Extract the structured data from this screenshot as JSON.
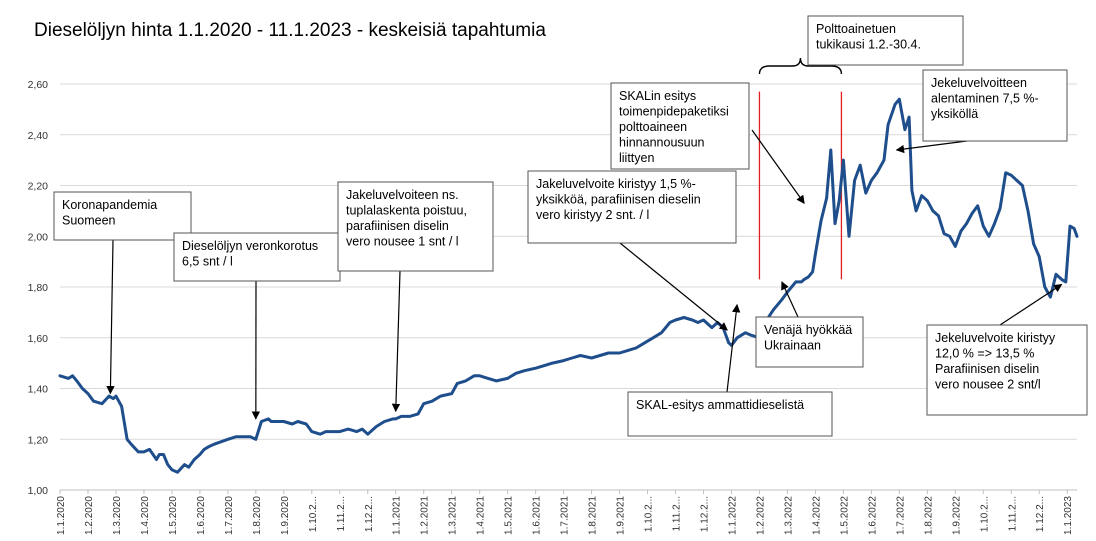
{
  "chart_data": {
    "type": "line",
    "title": "Dieselöljyn hinta 1.1.2020 - 11.1.2023 - keskeisiä tapahtumia",
    "ylim": [
      1.0,
      2.6
    ],
    "ytick_values": [
      1.0,
      1.2,
      1.4,
      1.6,
      1.8,
      2.0,
      2.2,
      2.4,
      2.6
    ],
    "ytick_labels": [
      "1,00",
      "1,20",
      "1,40",
      "1,60",
      "1,80",
      "2,00",
      "2,20",
      "2,40",
      "2,60"
    ],
    "xlim": [
      0,
      36.35
    ],
    "xtick_labels": [
      "1.1.2020",
      "1.2.2020",
      "1.3.2020",
      "1.4.2020",
      "1.5.2020",
      "1.6.2020",
      "1.7.2020",
      "1.8.2020",
      "1.9.2020",
      "1.10.2...",
      "1.11.2...",
      "1.12.2...",
      "1.1.2021",
      "1.2.2021",
      "1.3.2021",
      "1.4.2021",
      "1.5.2021",
      "1.6.2021",
      "1.7.2021",
      "1.8.2021",
      "1.9.2021",
      "1.10.2...",
      "1.11.2...",
      "1.12.2...",
      "1.1.2022",
      "1.2.2022",
      "1.3.2022",
      "1.4.2022",
      "1.5.2022",
      "1.6.2022",
      "1.7.2022",
      "1.8.2022",
      "1.9.2022",
      "1.10.2...",
      "1.11.2...",
      "1.12.2...",
      "1.1.2023"
    ],
    "grid": true,
    "legend": "none",
    "series": [
      {
        "color": "#1f4e8c",
        "x": [
          0,
          0.3,
          0.45,
          0.6,
          0.8,
          1.0,
          1.2,
          1.5,
          1.75,
          1.9,
          2.0,
          2.2,
          2.4,
          2.55,
          2.8,
          3.0,
          3.2,
          3.45,
          3.55,
          3.7,
          3.85,
          4.0,
          4.2,
          4.45,
          4.6,
          4.8,
          5.0,
          5.15,
          5.3,
          5.5,
          5.75,
          6.0,
          6.3,
          6.5,
          6.8,
          7.0,
          7.2,
          7.45,
          7.55,
          7.8,
          8.0,
          8.3,
          8.5,
          8.8,
          9.0,
          9.3,
          9.5,
          9.7,
          10.0,
          10.3,
          10.6,
          10.8,
          11.0,
          11.3,
          11.6,
          11.9,
          12.0,
          12.2,
          12.5,
          12.8,
          13.0,
          13.3,
          13.6,
          14.0,
          14.2,
          14.5,
          14.8,
          15.0,
          15.3,
          15.6,
          16.0,
          16.3,
          16.6,
          17.0,
          17.3,
          17.6,
          18.0,
          18.3,
          18.6,
          19.0,
          19.3,
          19.6,
          20.0,
          20.3,
          20.6,
          20.9,
          21.2,
          21.5,
          21.8,
          22.0,
          22.3,
          22.6,
          22.8,
          23.0,
          23.2,
          23.3,
          23.5,
          23.7,
          23.9,
          24.0,
          24.2,
          24.5,
          24.7,
          25.0,
          25.2,
          25.5,
          25.8,
          26.0,
          26.15,
          26.3,
          26.5,
          26.6,
          26.75,
          26.9,
          27.0,
          27.2,
          27.4,
          27.55,
          27.7,
          27.85,
          28.0,
          28.2,
          28.4,
          28.6,
          28.8,
          29.0,
          29.2,
          29.45,
          29.6,
          29.85,
          30.0,
          30.2,
          30.35,
          30.45,
          30.6,
          30.8,
          31.0,
          31.2,
          31.4,
          31.6,
          31.8,
          32.0,
          32.2,
          32.4,
          32.6,
          32.8,
          33.0,
          33.2,
          33.4,
          33.6,
          33.8,
          34.0,
          34.2,
          34.4,
          34.6,
          34.8,
          35.0,
          35.2,
          35.4,
          35.6,
          35.8,
          35.95,
          36.1,
          36.25,
          36.35
        ],
        "values": [
          1.45,
          1.44,
          1.45,
          1.43,
          1.4,
          1.38,
          1.35,
          1.34,
          1.37,
          1.36,
          1.37,
          1.33,
          1.2,
          1.18,
          1.15,
          1.15,
          1.16,
          1.12,
          1.14,
          1.14,
          1.1,
          1.08,
          1.07,
          1.1,
          1.09,
          1.12,
          1.14,
          1.16,
          1.17,
          1.18,
          1.19,
          1.2,
          1.21,
          1.21,
          1.21,
          1.2,
          1.27,
          1.28,
          1.27,
          1.27,
          1.27,
          1.26,
          1.27,
          1.26,
          1.23,
          1.22,
          1.23,
          1.23,
          1.23,
          1.24,
          1.23,
          1.24,
          1.22,
          1.25,
          1.27,
          1.28,
          1.28,
          1.29,
          1.29,
          1.3,
          1.34,
          1.35,
          1.37,
          1.38,
          1.42,
          1.43,
          1.45,
          1.45,
          1.44,
          1.43,
          1.44,
          1.46,
          1.47,
          1.48,
          1.49,
          1.5,
          1.51,
          1.52,
          1.53,
          1.52,
          1.53,
          1.54,
          1.54,
          1.55,
          1.56,
          1.58,
          1.6,
          1.62,
          1.66,
          1.67,
          1.68,
          1.67,
          1.66,
          1.67,
          1.65,
          1.64,
          1.66,
          1.64,
          1.58,
          1.57,
          1.6,
          1.62,
          1.61,
          1.6,
          1.66,
          1.71,
          1.75,
          1.78,
          1.8,
          1.82,
          1.82,
          1.83,
          1.84,
          1.86,
          1.93,
          2.06,
          2.15,
          2.34,
          2.05,
          2.14,
          2.3,
          2.0,
          2.22,
          2.28,
          2.17,
          2.22,
          2.25,
          2.3,
          2.44,
          2.52,
          2.54,
          2.42,
          2.47,
          2.18,
          2.1,
          2.16,
          2.14,
          2.1,
          2.08,
          2.01,
          2.0,
          1.96,
          2.02,
          2.05,
          2.09,
          2.12,
          2.04,
          2.0,
          2.05,
          2.11,
          2.25,
          2.24,
          2.22,
          2.2,
          2.1,
          1.97,
          1.92,
          1.8,
          1.76,
          1.85,
          1.83,
          1.82,
          2.04,
          2.03,
          2.0
        ]
      }
    ],
    "annotations": [
      {
        "lines": [
          "Koronapandemia",
          "Suomeen"
        ],
        "target_x": 1.8,
        "target_y": 1.38
      },
      {
        "lines": [
          "Dieselöljyn veronkorotus",
          "6,5 snt / l"
        ],
        "target_x": 7.0,
        "target_y": 1.28
      },
      {
        "lines": [
          "Jakeluvelvoiteen ns.",
          "tuplalaskenta poistuu,",
          "parafiinisen diselin",
          "vero nousee 1 snt / l"
        ],
        "target_x": 12.0,
        "target_y": 1.31
      },
      {
        "lines": [
          "Jakeluvelvoite kiristyy 1,5 %-",
          "yksikköä, parafiinisen dieselin",
          "vero kiristyy 2 snt. / l"
        ],
        "target_x": 23.85,
        "target_y": 1.63
      },
      {
        "lines": [
          "SKAL-esitys ammattidieselistä"
        ],
        "target_x": 24.2,
        "target_y": 1.73
      },
      {
        "lines": [
          "SKALin esitys",
          "toimenpidepaketiksi",
          "polttoaineen",
          "hinnannousuun",
          "liittyen"
        ],
        "target_x": 26.6,
        "target_y": 2.13
      },
      {
        "lines": [
          "Venäjä hyökkää",
          "Ukrainaan"
        ],
        "target_x": 25.8,
        "target_y": 1.82
      },
      {
        "lines": [
          "Polttoainetuen",
          "tukikausi 1.2.-30.4."
        ]
      },
      {
        "lines": [
          "Jekeluvelvoitteen",
          "alentaminen 7,5 %-",
          "yksiköllä"
        ],
        "target_x": 29.9,
        "target_y": 2.34
      },
      {
        "lines": [
          "Jekeluvelvoite kiristyy",
          "12,0 % => 13,5 %",
          "Parafiinisen diselin",
          "vero nousee 2 snt/l"
        ],
        "target_x": 35.8,
        "target_y": 1.81
      }
    ],
    "shaded_period": {
      "start_x": 25.0,
      "end_x": 27.93,
      "ymin": 1.83,
      "ymax": 2.57
    }
  }
}
